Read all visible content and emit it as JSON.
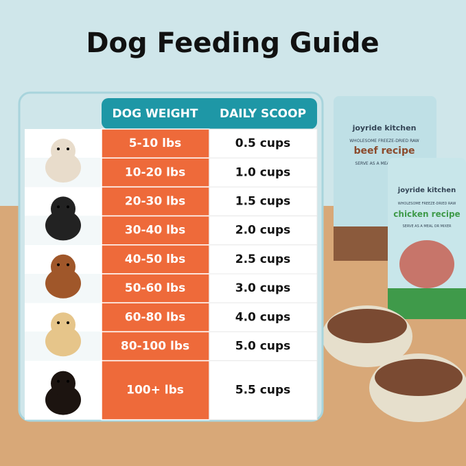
{
  "header": {
    "title": "Dog Feeding Guide"
  },
  "table": {
    "columns": [
      "DOG WEIGHT",
      "DAILY SCOOP"
    ],
    "rows": [
      {
        "weight": "5-10 lbs",
        "scoop": "0.5 cups"
      },
      {
        "weight": "10-20 lbs",
        "scoop": "1.0 cups"
      },
      {
        "weight": "20-30 lbs",
        "scoop": "1.5 cups"
      },
      {
        "weight": "30-40 lbs",
        "scoop": "2.0 cups"
      },
      {
        "weight": "40-50 lbs",
        "scoop": "2.5 cups"
      },
      {
        "weight": "50-60 lbs",
        "scoop": "3.0 cups"
      },
      {
        "weight": "60-80 lbs",
        "scoop": "4.0 cups"
      },
      {
        "weight": "80-100 lbs",
        "scoop": "5.0 cups"
      },
      {
        "weight": "100+ lbs",
        "scoop": "5.5 cups"
      }
    ]
  },
  "bags": [
    {
      "brand": "joyride kitchen",
      "tagline": "WHOLESOME FREEZE-DRIED RAW",
      "recipe": "beef recipe",
      "serve": "SERVE AS A MEAL OR MIXER"
    },
    {
      "brand": "joyride kitchen",
      "tagline": "WHOLESOME FREEZE-DRIED RAW",
      "recipe": "chicken recipe",
      "serve": "SERVE AS A MEAL OR MIXER"
    }
  ]
}
